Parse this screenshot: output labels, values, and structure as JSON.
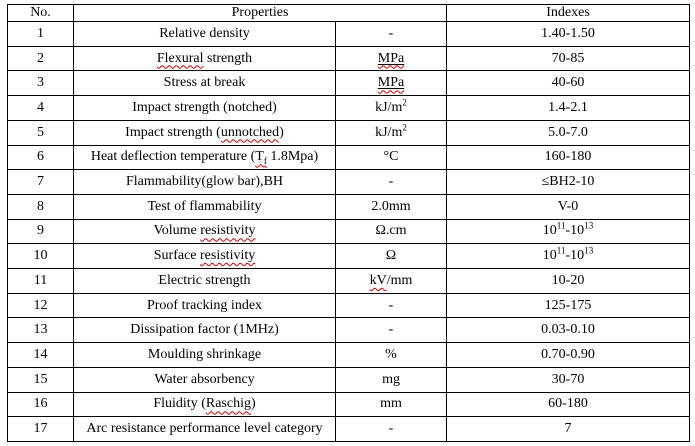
{
  "colors": {
    "background": "#ffffff",
    "border": "#000000",
    "text": "#000000",
    "squiggle": "#c00000"
  },
  "table": {
    "headers": {
      "no": "No.",
      "properties": "Properties",
      "indexes": "Indexes"
    },
    "rows": [
      {
        "no": "1",
        "property": [
          {
            "t": "Relative density"
          }
        ],
        "unit": [
          {
            "t": "-"
          }
        ],
        "index": [
          {
            "t": "1.40-1.50"
          }
        ]
      },
      {
        "no": "2",
        "property": [
          {
            "t": "Flexural",
            "sq": true
          },
          {
            "t": " strength"
          }
        ],
        "unit": [
          {
            "t": "MPa",
            "ul": true,
            "sq": true
          }
        ],
        "index": [
          {
            "t": "70-85"
          }
        ]
      },
      {
        "no": "3",
        "property": [
          {
            "t": "Stress at break"
          }
        ],
        "unit": [
          {
            "t": "MPa",
            "ul": true,
            "sq": true
          }
        ],
        "index": [
          {
            "t": "40-60"
          }
        ]
      },
      {
        "no": "4",
        "property": [
          {
            "t": "Impact strength (notched)"
          }
        ],
        "unit": [
          {
            "t": "kJ/m"
          },
          {
            "t": "2",
            "sup": true
          }
        ],
        "index": [
          {
            "t": "1.4-2.1"
          }
        ]
      },
      {
        "no": "5",
        "property": [
          {
            "t": "Impact strength ("
          },
          {
            "t": "unnotched",
            "sq": true
          },
          {
            "t": ")"
          }
        ],
        "unit": [
          {
            "t": "kJ/m"
          },
          {
            "t": "2",
            "sup": true
          }
        ],
        "index": [
          {
            "t": "5.0-7.0"
          }
        ]
      },
      {
        "no": "6",
        "property": [
          {
            "t": "Heat deflection temperature ("
          },
          {
            "t": "T",
            "sq": true
          },
          {
            "t": "f",
            "sub": true,
            "sq": true
          },
          {
            "t": " 1.8Mpa)"
          }
        ],
        "unit": [
          {
            "t": "°C"
          }
        ],
        "index": [
          {
            "t": "160-180"
          }
        ]
      },
      {
        "no": "7",
        "property": [
          {
            "t": "Flammability(glow bar),BH"
          }
        ],
        "unit": [
          {
            "t": "-"
          }
        ],
        "index": [
          {
            "t": "≤BH2-10"
          }
        ]
      },
      {
        "no": "8",
        "property": [
          {
            "t": "Test of flammability"
          }
        ],
        "unit": [
          {
            "t": "2.0mm"
          }
        ],
        "index": [
          {
            "t": "V-0"
          }
        ]
      },
      {
        "no": "9",
        "property": [
          {
            "t": "Volume "
          },
          {
            "t": "resistivity",
            "sq": true
          }
        ],
        "unit": [
          {
            "t": "Ω.cm"
          }
        ],
        "index": [
          {
            "t": "10"
          },
          {
            "t": "11",
            "sup": true
          },
          {
            "t": "-10"
          },
          {
            "t": "13",
            "sup": true
          }
        ]
      },
      {
        "no": "10",
        "property": [
          {
            "t": "Surface "
          },
          {
            "t": "resistivity",
            "sq": true
          }
        ],
        "unit": [
          {
            "t": "Ω"
          }
        ],
        "index": [
          {
            "t": "10"
          },
          {
            "t": "11",
            "sup": true
          },
          {
            "t": "-10"
          },
          {
            "t": "13",
            "sup": true
          }
        ]
      },
      {
        "no": "11",
        "property": [
          {
            "t": "Electric strength"
          }
        ],
        "unit": [
          {
            "t": "kV",
            "sq": true
          },
          {
            "t": "/mm"
          }
        ],
        "index": [
          {
            "t": "10-20"
          }
        ]
      },
      {
        "no": "12",
        "property": [
          {
            "t": "Proof tracking index"
          }
        ],
        "unit": [
          {
            "t": "-"
          }
        ],
        "index": [
          {
            "t": "125-175"
          }
        ]
      },
      {
        "no": "13",
        "property": [
          {
            "t": "Dissipation factor (1MHz)"
          }
        ],
        "unit": [
          {
            "t": "-"
          }
        ],
        "index": [
          {
            "t": "0.03-0.10"
          }
        ]
      },
      {
        "no": "14",
        "property": [
          {
            "t": "Moulding shrinkage"
          }
        ],
        "unit": [
          {
            "t": "%"
          }
        ],
        "index": [
          {
            "t": "0.70-0.90"
          }
        ]
      },
      {
        "no": "15",
        "property": [
          {
            "t": "Water absorbency"
          }
        ],
        "unit": [
          {
            "t": "mg"
          }
        ],
        "index": [
          {
            "t": "30-70"
          }
        ]
      },
      {
        "no": "16",
        "property": [
          {
            "t": "Fluidity ("
          },
          {
            "t": "Raschig",
            "sq": true
          },
          {
            "t": ")"
          }
        ],
        "unit": [
          {
            "t": "mm"
          }
        ],
        "index": [
          {
            "t": "60-180"
          }
        ]
      },
      {
        "no": "17",
        "property": [
          {
            "t": "Arc resistance performance level category"
          }
        ],
        "unit": [
          {
            "t": "-"
          }
        ],
        "index": [
          {
            "t": "7"
          }
        ]
      }
    ]
  }
}
